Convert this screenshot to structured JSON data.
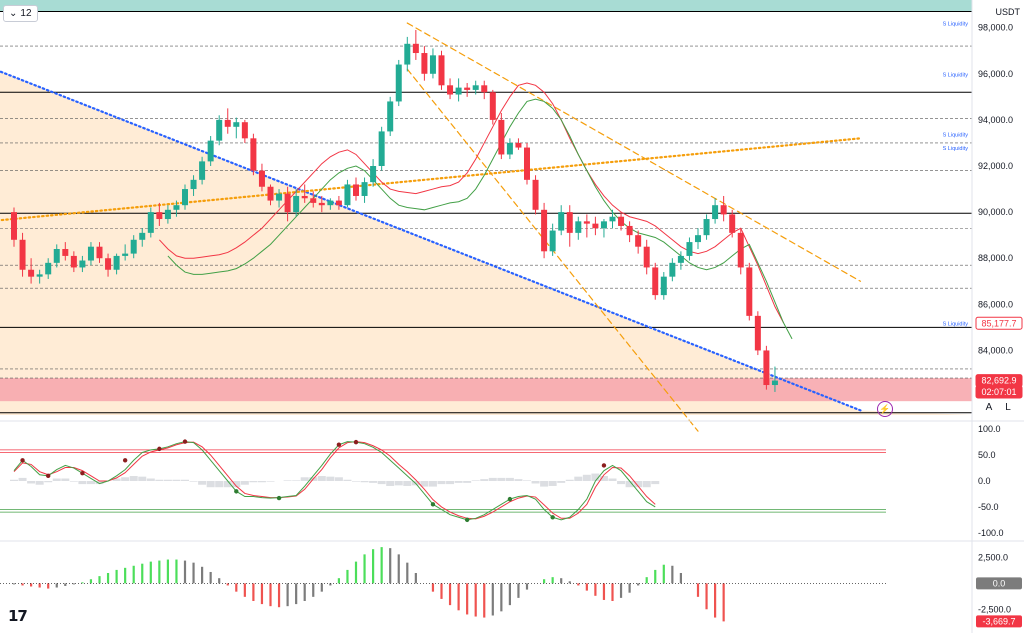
{
  "toolbar": {
    "interval": "12",
    "currency": "USDT",
    "auto_label": "A",
    "log_label": "L"
  },
  "icons": {
    "interval_chevron": "chevron-down-icon",
    "logo": "tradingview-logo",
    "alert": "lightning-icon"
  },
  "colors": {
    "up": "#22ab94",
    "down": "#f23645",
    "ema_red": "#f23645",
    "ema_green": "#43a047",
    "trend_blue": "#2962ff",
    "trend_orange": "#f59e0b",
    "zone_peach": "#ffe9cf",
    "zone_red": "#f7a8ae",
    "zone_teal": "#9fd8cf",
    "hist_green": "#4caf50",
    "hist_red": "#f06a6a"
  },
  "chart_data": [
    {
      "type": "candlestick",
      "ylim": [
        81200,
        99200
      ],
      "y_ticks": [
        "98,000.0",
        "96,000.0",
        "94,000.0",
        "92,000.0",
        "90,000.0",
        "88,000.0",
        "86,000.0",
        "84,000.0"
      ],
      "y_tick_values": [
        98000,
        96000,
        94000,
        92000,
        90000,
        88000,
        86000,
        84000
      ],
      "liquidity_levels": [
        {
          "label": "S Liquidity",
          "value": 98000
        },
        {
          "label": "S Liquidity",
          "value": 95800
        },
        {
          "label": "S Liquidity",
          "value": 93200
        },
        {
          "label": "S Liquidity",
          "value": 92600
        },
        {
          "label": "S Liquidity",
          "value": 85000
        }
      ],
      "horizontal_levels": [
        98700,
        95200,
        89950,
        85000,
        81300
      ],
      "dashed_levels": [
        97200,
        94050,
        93000,
        91800,
        89300,
        87700,
        86700,
        83200,
        82800
      ],
      "zones": [
        {
          "name": "resistance",
          "from": 98700,
          "to": 99200
        },
        {
          "name": "support",
          "from": 81800,
          "to": 82800
        }
      ],
      "price_badges": [
        {
          "label": "85,177.7",
          "value": 85177.7,
          "style": "outline"
        },
        {
          "label": "82,692.9",
          "value": 82692.9,
          "style": "filled"
        },
        {
          "label": "02:07:01",
          "value": 82200,
          "style": "filled"
        }
      ],
      "candles": [
        [
          90000,
          90200,
          88500,
          88800
        ],
        [
          88800,
          89100,
          87200,
          87500
        ],
        [
          87500,
          88000,
          86900,
          87200
        ],
        [
          87200,
          87500,
          86900,
          87300
        ],
        [
          87300,
          88000,
          87100,
          87800
        ],
        [
          87800,
          88600,
          87600,
          88400
        ],
        [
          88400,
          88700,
          87900,
          88100
        ],
        [
          88100,
          88300,
          87400,
          87600
        ],
        [
          87600,
          88100,
          87400,
          87900
        ],
        [
          87900,
          88700,
          87700,
          88500
        ],
        [
          88500,
          88700,
          87800,
          88000
        ],
        [
          88000,
          88200,
          87200,
          87500
        ],
        [
          87500,
          88200,
          87300,
          88100
        ],
        [
          88100,
          88600,
          87900,
          88200
        ],
        [
          88200,
          89000,
          88000,
          88800
        ],
        [
          88800,
          89300,
          88500,
          89100
        ],
        [
          89100,
          90200,
          88900,
          90000
        ],
        [
          90000,
          90400,
          89400,
          89700
        ],
        [
          89700,
          90300,
          89500,
          90100
        ],
        [
          90100,
          90500,
          89800,
          90300
        ],
        [
          90300,
          91200,
          90100,
          91000
        ],
        [
          91000,
          91600,
          90700,
          91400
        ],
        [
          91400,
          92400,
          91200,
          92200
        ],
        [
          92200,
          93300,
          92000,
          93100
        ],
        [
          93100,
          94200,
          92900,
          94000
        ],
        [
          94000,
          94500,
          93400,
          93700
        ],
        [
          93700,
          94100,
          93200,
          93900
        ],
        [
          93900,
          94000,
          93000,
          93200
        ],
        [
          93200,
          93400,
          91600,
          91800
        ],
        [
          91800,
          92100,
          90900,
          91100
        ],
        [
          91100,
          91200,
          90300,
          90500
        ],
        [
          90500,
          91000,
          90200,
          90800
        ],
        [
          90800,
          91100,
          89600,
          90000
        ],
        [
          90000,
          91000,
          89800,
          90700
        ],
        [
          90700,
          91200,
          90400,
          90600
        ],
        [
          90600,
          90900,
          90200,
          90400
        ],
        [
          90400,
          90700,
          90000,
          90300
        ],
        [
          90300,
          90600,
          90100,
          90500
        ],
        [
          90500,
          90700,
          90100,
          90300
        ],
        [
          90300,
          91400,
          90200,
          91200
        ],
        [
          91200,
          91500,
          90500,
          90700
        ],
        [
          90700,
          91500,
          90400,
          91300
        ],
        [
          91300,
          92300,
          91100,
          92000
        ],
        [
          92000,
          93700,
          91800,
          93500
        ],
        [
          93500,
          95000,
          93300,
          94800
        ],
        [
          94800,
          96600,
          94600,
          96400
        ],
        [
          96400,
          97600,
          96100,
          97300
        ],
        [
          97300,
          97900,
          96600,
          96900
        ],
        [
          96900,
          97200,
          95700,
          96000
        ],
        [
          96000,
          97100,
          95800,
          96800
        ],
        [
          96800,
          97000,
          95300,
          95500
        ],
        [
          95500,
          95800,
          94900,
          95100
        ],
        [
          95100,
          95800,
          94800,
          95400
        ],
        [
          95400,
          95600,
          95000,
          95300
        ],
        [
          95300,
          95700,
          95100,
          95500
        ],
        [
          95500,
          95700,
          94900,
          95200
        ],
        [
          95200,
          95300,
          93800,
          94000
        ],
        [
          94000,
          94300,
          92300,
          92500
        ],
        [
          92500,
          93200,
          92300,
          93000
        ],
        [
          93000,
          93200,
          92700,
          92800
        ],
        [
          92800,
          93000,
          91200,
          91400
        ],
        [
          91400,
          91600,
          89900,
          90100
        ],
        [
          90100,
          90400,
          88000,
          88300
        ],
        [
          88300,
          89500,
          88100,
          89200
        ],
        [
          89200,
          90300,
          89000,
          90000
        ],
        [
          90000,
          90300,
          88500,
          89100
        ],
        [
          89100,
          89800,
          88800,
          89600
        ],
        [
          89600,
          89900,
          88900,
          89500
        ],
        [
          89500,
          89800,
          89000,
          89300
        ],
        [
          89300,
          89700,
          88900,
          89600
        ],
        [
          89600,
          90100,
          89300,
          89800
        ],
        [
          89800,
          90000,
          89200,
          89400
        ],
        [
          89400,
          89600,
          88700,
          89000
        ],
        [
          89000,
          89200,
          88200,
          88500
        ],
        [
          88500,
          88800,
          87300,
          87600
        ],
        [
          87600,
          87800,
          86200,
          86400
        ],
        [
          86400,
          87400,
          86200,
          87200
        ],
        [
          87200,
          88000,
          87000,
          87800
        ],
        [
          87800,
          88300,
          87500,
          88100
        ],
        [
          88100,
          88900,
          87900,
          88700
        ],
        [
          88700,
          89300,
          88400,
          89000
        ],
        [
          89000,
          89900,
          88800,
          89700
        ],
        [
          89700,
          90600,
          89500,
          90300
        ],
        [
          90300,
          90700,
          89600,
          89900
        ],
        [
          89900,
          90100,
          88900,
          89100
        ],
        [
          89100,
          89300,
          87300,
          87600
        ],
        [
          87600,
          87800,
          85300,
          85500
        ],
        [
          85500,
          85700,
          83800,
          84000
        ],
        [
          84000,
          84200,
          82300,
          82500
        ],
        [
          82500,
          83300,
          82200,
          82693
        ]
      ],
      "ema_red_y": [
        88800,
        88400,
        88100,
        88000,
        88000,
        88050,
        88100,
        88150,
        88250,
        88450,
        88700,
        89000,
        89300,
        89700,
        90100,
        90500,
        90900,
        91300,
        91700,
        92100,
        92400,
        92600,
        92700,
        92500,
        92100,
        91700,
        91300,
        91000,
        90900,
        90850,
        90800,
        90900,
        91000,
        91100,
        91150,
        91300,
        91700,
        92300,
        93000,
        93700,
        94400,
        95000,
        95500,
        95600,
        95500,
        95200,
        94700,
        94000,
        93200,
        92500,
        91800,
        91200,
        90700,
        90300,
        90000,
        89800,
        89700,
        89600,
        89400,
        89100,
        88800,
        88500,
        88300,
        88200,
        88300,
        88500,
        88800,
        89100,
        89300,
        88500,
        87700,
        86800,
        85900,
        85200
      ],
      "ema_red_x_from": 17,
      "ema_green_from": 18,
      "trendlines": [
        {
          "name": "descending-blue",
          "from": [
            -3,
            96300
          ],
          "to": [
            99,
            81400
          ]
        },
        {
          "name": "ascending-orange",
          "from": [
            -3,
            89600
          ],
          "to": [
            99,
            93200
          ]
        },
        {
          "name": "falling-orange-upper",
          "from": [
            46,
            98200
          ],
          "to": [
            99,
            87000
          ]
        },
        {
          "name": "falling-orange-lower",
          "from": [
            46,
            96200
          ],
          "to": [
            80,
            80500
          ]
        }
      ]
    },
    {
      "type": "line",
      "ylim": [
        -110,
        110
      ],
      "y_ticks": [
        "100.0",
        "50.0",
        "0.0",
        "-50.0",
        "-100.0"
      ],
      "y_tick_values": [
        100,
        50,
        0,
        -50,
        -100
      ],
      "bands": [
        55,
        60,
        -55,
        -60
      ],
      "series_k": [
        20,
        40,
        28,
        12,
        10,
        22,
        30,
        25,
        15,
        5,
        -5,
        0,
        10,
        22,
        40,
        55,
        60,
        62,
        66,
        72,
        76,
        74,
        60,
        40,
        20,
        0,
        -20,
        -30,
        -30,
        -32,
        -33,
        -32,
        -30,
        -28,
        -10,
        10,
        30,
        52,
        70,
        76,
        75,
        72,
        65,
        55,
        40,
        25,
        10,
        -5,
        -25,
        -45,
        -55,
        -65,
        -70,
        -75,
        -72,
        -65,
        -55,
        -45,
        -35,
        -30,
        -28,
        -35,
        -55,
        -70,
        -75,
        -70,
        -55,
        -35,
        0,
        20,
        30,
        20,
        0,
        -20,
        -40,
        -50
      ],
      "series_d": [
        18,
        35,
        32,
        18,
        12,
        18,
        26,
        26,
        20,
        10,
        0,
        0,
        6,
        16,
        32,
        48,
        56,
        60,
        64,
        70,
        74,
        75,
        66,
        50,
        30,
        10,
        -10,
        -24,
        -28,
        -30,
        -32,
        -32,
        -31,
        -29,
        -16,
        4,
        22,
        45,
        64,
        74,
        76,
        74,
        68,
        60,
        48,
        32,
        18,
        2,
        -16,
        -36,
        -50,
        -60,
        -67,
        -72,
        -73,
        -68,
        -60,
        -50,
        -40,
        -33,
        -29,
        -31,
        -46,
        -62,
        -72,
        -72,
        -62,
        -45,
        -12,
        12,
        26,
        25,
        10,
        -10,
        -30,
        -45
      ],
      "markers": [
        [
          1,
          40
        ],
        [
          4,
          10
        ],
        [
          8,
          15
        ],
        [
          13,
          40
        ],
        [
          17,
          62
        ],
        [
          20,
          76
        ],
        [
          26,
          -20
        ],
        [
          31,
          -33
        ],
        [
          38,
          70
        ],
        [
          40,
          75
        ],
        [
          49,
          -45
        ],
        [
          53,
          -75
        ],
        [
          58,
          -35
        ],
        [
          63,
          -70
        ],
        [
          69,
          30
        ]
      ]
    },
    {
      "type": "bar",
      "ylim": [
        -4500,
        3800
      ],
      "y_ticks": [
        "2,500.0",
        "-2,500.0"
      ],
      "y_tick_values": [
        2500,
        -2500
      ],
      "badges": [
        {
          "label": "0.0",
          "value": 0,
          "style": "grey"
        },
        {
          "label": "-3,669.7",
          "value": -3669.7,
          "style": "red"
        }
      ],
      "values": [
        -100,
        -200,
        -300,
        -400,
        -500,
        -400,
        -250,
        -100,
        100,
        400,
        700,
        1000,
        1300,
        1500,
        1700,
        1900,
        2100,
        2200,
        2300,
        2300,
        2200,
        2000,
        1600,
        1100,
        500,
        -200,
        -800,
        -1300,
        -1700,
        -2000,
        -2200,
        -2300,
        -2200,
        -2000,
        -1700,
        -1300,
        -800,
        -200,
        500,
        1300,
        2100,
        2800,
        3300,
        3500,
        3400,
        2800,
        2000,
        1000,
        0,
        -800,
        -1500,
        -2100,
        -2600,
        -3000,
        -3200,
        -3300,
        -3100,
        -2700,
        -2100,
        -1400,
        -600,
        0,
        400,
        600,
        500,
        200,
        -200,
        -700,
        -1200,
        -1600,
        -1700,
        -1400,
        -900,
        -200,
        600,
        1300,
        1800,
        1700,
        1000,
        0,
        -1300,
        -2500,
        -3300,
        -3669.7
      ],
      "x_from": 0
    }
  ]
}
